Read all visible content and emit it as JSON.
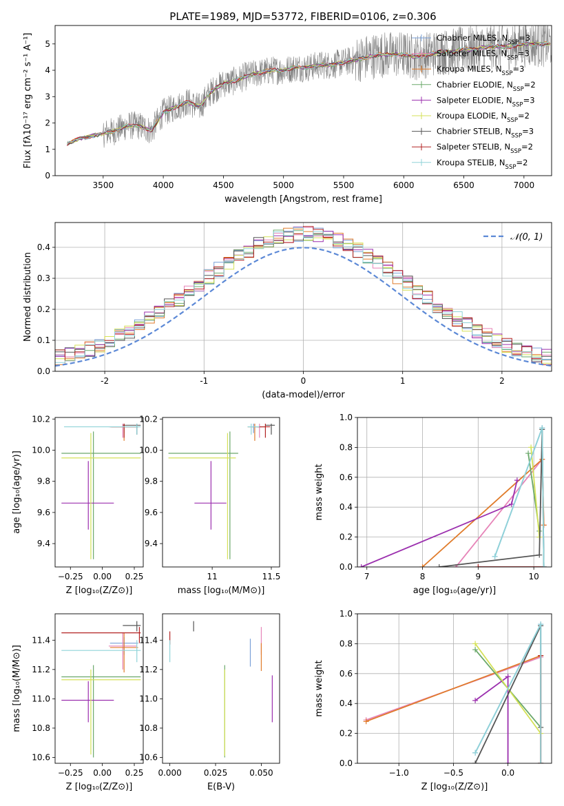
{
  "title": "PLATE=1989, MJD=53772, FIBERID=0106, z=0.306",
  "series_colors": {
    "Chabrier MILES": "#7aa0d8",
    "Salpeter MILES": "#e684b8",
    "Kroupa MILES": "#e07b2a",
    "Chabrier ELODIE": "#6aa86a",
    "Salpeter ELODIE": "#9b2fae",
    "Kroupa ELODIE": "#d4e157",
    "Chabrier STELIB": "#555555",
    "Salpeter STELIB": "#b22222",
    "Kroupa STELIB": "#8fd3d8"
  },
  "chart_data": [
    {
      "id": "spectrum",
      "type": "line",
      "xlabel": "wavelength [Angstrom, rest frame]",
      "ylabel": "Flux [fλ10⁻¹⁷ erg cm⁻² s⁻¹ A⁻¹]",
      "xlim": [
        3100,
        7230
      ],
      "ylim": [
        0,
        5.7
      ],
      "xticks": [
        3500,
        4000,
        4500,
        5000,
        5500,
        6000,
        6500,
        7000
      ],
      "yticks": [
        0,
        1,
        2,
        3,
        4,
        5
      ],
      "legend": [
        {
          "label": "Chabrier MILES, N",
          "sub": "SSP",
          "suffix": "=3",
          "series": "Chabrier MILES"
        },
        {
          "label": "Salpeter MILES, N",
          "sub": "SSP",
          "suffix": "=3",
          "series": "Salpeter MILES"
        },
        {
          "label": "Kroupa MILES, N",
          "sub": "SSP",
          "suffix": "=3",
          "series": "Kroupa MILES"
        },
        {
          "label": "Chabrier ELODIE, N",
          "sub": "SSP",
          "suffix": "=2",
          "series": "Chabrier ELODIE"
        },
        {
          "label": "Salpeter ELODIE, N",
          "sub": "SSP",
          "suffix": "=3",
          "series": "Salpeter ELODIE"
        },
        {
          "label": "Kroupa ELODIE, N",
          "sub": "SSP",
          "suffix": "=2",
          "series": "Kroupa ELODIE"
        },
        {
          "label": "Chabrier STELIB, N",
          "sub": "SSP",
          "suffix": "=3",
          "series": "Chabrier STELIB"
        },
        {
          "label": "Salpeter STELIB, N",
          "sub": "SSP",
          "suffix": "=2",
          "series": "Salpeter STELIB"
        },
        {
          "label": "Kroupa STELIB, N",
          "sub": "SSP",
          "suffix": "=2",
          "series": "Kroupa STELIB"
        }
      ],
      "model_curve": {
        "x": [
          3200,
          3300,
          3400,
          3500,
          3600,
          3700,
          3800,
          3900,
          4000,
          4100,
          4200,
          4300,
          4400,
          4500,
          4600,
          4700,
          4800,
          4900,
          5000,
          5100,
          5200,
          5300,
          5400,
          5500,
          5600,
          5700,
          5800,
          5900,
          6000,
          6100,
          6200,
          6300,
          6400,
          6500,
          6600,
          6700,
          6800,
          6900,
          7000,
          7100,
          7230
        ],
        "y": [
          1.2,
          1.4,
          1.5,
          1.6,
          1.7,
          1.9,
          1.9,
          1.7,
          2.4,
          2.6,
          2.8,
          2.6,
          3.2,
          3.5,
          3.6,
          3.8,
          3.9,
          4.0,
          4.0,
          4.1,
          4.1,
          4.2,
          4.2,
          4.3,
          4.4,
          4.5,
          4.6,
          4.6,
          4.6,
          4.5,
          4.6,
          4.7,
          4.7,
          4.8,
          4.8,
          4.9,
          4.9,
          4.9,
          5.0,
          5.0,
          5.0
        ]
      },
      "data_range": [
        3200,
        7230
      ]
    },
    {
      "id": "residuals",
      "type": "histogram",
      "xlabel": "(data-model)/error",
      "ylabel": "Normed distribution",
      "xlim": [
        -2.5,
        2.5
      ],
      "ylim": [
        0,
        0.48
      ],
      "xticks": [
        -2,
        -1,
        0,
        1,
        2
      ],
      "yticks": [
        0.0,
        0.1,
        0.2,
        0.3,
        0.4
      ],
      "legend": [
        {
          "label": "𝒩(0, 1)",
          "style": "dashed",
          "color": "#5b88d6"
        }
      ],
      "bin_width": 0.1,
      "gaussian": {
        "mu": 0,
        "sigma": 1
      }
    },
    {
      "id": "age_vs_Z",
      "type": "errorbar",
      "xlabel": "Z [log₁₀(Z/Z⊙)]",
      "ylabel": "age  [log₁₀(age/yr)]",
      "xlim": [
        -0.37,
        0.32
      ],
      "ylim": [
        9.25,
        10.21
      ],
      "xticks": [
        -0.25,
        0.0,
        0.25
      ],
      "xticklabels": [
        "−0.25",
        "0.00",
        "0.25"
      ],
      "yticks": [
        9.4,
        9.6,
        9.8,
        10.0,
        10.2
      ],
      "points": [
        {
          "series": "Chabrier MILES",
          "x": 0.17,
          "y": 10.15,
          "xlo": 0.06,
          "xhi": 0.28,
          "ylo": 10.11,
          "yhi": 10.17
        },
        {
          "series": "Salpeter MILES",
          "x": 0.16,
          "y": 10.15,
          "xlo": 0.05,
          "xhi": 0.27,
          "ylo": 10.08,
          "yhi": 10.17
        },
        {
          "series": "Kroupa MILES",
          "x": 0.17,
          "y": 10.15,
          "xlo": 0.06,
          "xhi": 0.28,
          "ylo": 10.06,
          "yhi": 10.17
        },
        {
          "series": "Chabrier ELODIE",
          "x": -0.07,
          "y": 9.98,
          "xlo": -0.32,
          "xhi": 0.3,
          "ylo": 9.3,
          "yhi": 10.12
        },
        {
          "series": "Salpeter ELODIE",
          "x": -0.11,
          "y": 9.66,
          "xlo": -0.32,
          "xhi": 0.09,
          "ylo": 9.49,
          "yhi": 9.93
        },
        {
          "series": "Kroupa ELODIE",
          "x": -0.09,
          "y": 9.95,
          "xlo": -0.32,
          "xhi": 0.3,
          "ylo": 9.3,
          "yhi": 10.11
        },
        {
          "series": "Chabrier STELIB",
          "x": 0.27,
          "y": 10.16,
          "xlo": 0.16,
          "xhi": 0.3,
          "ylo": 10.1,
          "yhi": 10.17
        },
        {
          "series": "Salpeter STELIB",
          "x": 0.17,
          "y": 10.15,
          "xlo": 0.07,
          "xhi": 0.28,
          "ylo": 10.08,
          "yhi": 10.17
        },
        {
          "series": "Kroupa STELIB",
          "x": 0.27,
          "y": 10.15,
          "xlo": -0.3,
          "xhi": 0.3,
          "ylo": 10.1,
          "yhi": 10.17
        }
      ]
    },
    {
      "id": "age_vs_mass",
      "type": "errorbar",
      "xlabel": "mass [log₁₀(M/M⊙)]",
      "ylabel": "",
      "xlim": [
        10.58,
        11.57
      ],
      "ylim": [
        9.25,
        10.21
      ],
      "xticks": [
        11.0,
        11.5
      ],
      "yticks": [
        9.4,
        9.6,
        9.8,
        10.0,
        10.2
      ],
      "points": [
        {
          "series": "Chabrier MILES",
          "x": 11.35,
          "y": 10.15,
          "xlo": 11.3,
          "xhi": 11.42,
          "ylo": 10.11,
          "yhi": 10.17
        },
        {
          "series": "Salpeter MILES",
          "x": 11.4,
          "y": 10.15,
          "xlo": 11.32,
          "xhi": 11.45,
          "ylo": 10.08,
          "yhi": 10.17
        },
        {
          "series": "Kroupa MILES",
          "x": 11.36,
          "y": 10.15,
          "xlo": 11.3,
          "xhi": 11.45,
          "ylo": 10.06,
          "yhi": 10.17
        },
        {
          "series": "Chabrier ELODIE",
          "x": 11.15,
          "y": 9.98,
          "xlo": 10.63,
          "xhi": 11.22,
          "ylo": 9.3,
          "yhi": 10.12
        },
        {
          "series": "Salpeter ELODIE",
          "x": 10.99,
          "y": 9.66,
          "xlo": 10.85,
          "xhi": 11.12,
          "ylo": 9.49,
          "yhi": 9.93
        },
        {
          "series": "Kroupa ELODIE",
          "x": 11.13,
          "y": 9.95,
          "xlo": 10.63,
          "xhi": 11.2,
          "ylo": 9.3,
          "yhi": 10.11
        },
        {
          "series": "Chabrier STELIB",
          "x": 11.5,
          "y": 10.16,
          "xlo": 11.45,
          "xhi": 11.53,
          "ylo": 10.1,
          "yhi": 10.17
        },
        {
          "series": "Salpeter STELIB",
          "x": 11.45,
          "y": 10.15,
          "xlo": 11.38,
          "xhi": 11.49,
          "ylo": 10.08,
          "yhi": 10.17
        },
        {
          "series": "Kroupa STELIB",
          "x": 11.33,
          "y": 10.15,
          "xlo": 11.3,
          "xhi": 11.4,
          "ylo": 10.1,
          "yhi": 10.17
        }
      ]
    },
    {
      "id": "weight_vs_age",
      "type": "line",
      "xlabel": "age  [log₁₀(age/yr)]",
      "ylabel": "mass weight",
      "xlim": [
        6.83,
        10.32
      ],
      "ylim": [
        0,
        1
      ],
      "xticks": [
        7,
        8,
        9,
        10
      ],
      "yticks": [
        0.0,
        0.2,
        0.4,
        0.6,
        0.8,
        1.0
      ],
      "grid": true,
      "series": [
        {
          "name": "Chabrier MILES",
          "x": [
            9.3,
            10.15,
            10.18
          ],
          "y": [
            0.07,
            0.93,
            0.0
          ]
        },
        {
          "name": "Salpeter MILES",
          "x": [
            8.6,
            10.15,
            10.18
          ],
          "y": [
            0.0,
            0.72,
            0.28
          ]
        },
        {
          "name": "Kroupa MILES",
          "x": [
            8.0,
            10.15,
            10.18
          ],
          "y": [
            0.0,
            0.72,
            0.28
          ]
        },
        {
          "name": "Chabrier ELODIE",
          "x": [
            9.9,
            10.1
          ],
          "y": [
            0.76,
            0.24
          ]
        },
        {
          "name": "Salpeter ELODIE",
          "x": [
            6.9,
            9.6,
            9.7
          ],
          "y": [
            0.0,
            0.42,
            0.58
          ]
        },
        {
          "name": "Kroupa ELODIE",
          "x": [
            9.95,
            10.1
          ],
          "y": [
            0.8,
            0.2
          ]
        },
        {
          "name": "Chabrier STELIB",
          "x": [
            8.3,
            10.1,
            10.15,
            10.18
          ],
          "y": [
            0.0,
            0.08,
            0.92,
            0.0
          ]
        },
        {
          "name": "Salpeter STELIB",
          "x": [
            9.0,
            10.18
          ],
          "y": [
            0.0,
            0.0
          ]
        },
        {
          "name": "Kroupa STELIB",
          "x": [
            9.3,
            10.15,
            10.18
          ],
          "y": [
            0.07,
            0.93,
            0.0
          ]
        }
      ]
    },
    {
      "id": "mass_vs_Z",
      "type": "errorbar",
      "xlabel": "Z [log₁₀(Z/Z⊙)]",
      "ylabel": "mass [log₁₀(M/M⊙)]",
      "xlim": [
        -0.37,
        0.32
      ],
      "ylim": [
        10.56,
        11.58
      ],
      "xticks": [
        -0.25,
        0.0,
        0.25
      ],
      "xticklabels": [
        "−0.25",
        "0.00",
        "0.25"
      ],
      "yticks": [
        10.6,
        10.8,
        11.0,
        11.2,
        11.4
      ],
      "points": [
        {
          "series": "Chabrier MILES",
          "x": 0.17,
          "y": 11.38,
          "xlo": 0.06,
          "xhi": 0.28,
          "ylo": 11.3,
          "yhi": 11.42
        },
        {
          "series": "Salpeter MILES",
          "x": 0.16,
          "y": 11.36,
          "xlo": 0.05,
          "xhi": 0.27,
          "ylo": 11.2,
          "yhi": 11.45
        },
        {
          "series": "Kroupa MILES",
          "x": 0.17,
          "y": 11.35,
          "xlo": 0.06,
          "xhi": 0.28,
          "ylo": 11.18,
          "yhi": 11.45
        },
        {
          "series": "Chabrier ELODIE",
          "x": -0.07,
          "y": 11.15,
          "xlo": -0.32,
          "xhi": 0.3,
          "ylo": 10.6,
          "yhi": 11.23
        },
        {
          "series": "Salpeter ELODIE",
          "x": -0.11,
          "y": 10.99,
          "xlo": -0.32,
          "xhi": 0.09,
          "ylo": 10.84,
          "yhi": 11.12
        },
        {
          "series": "Kroupa ELODIE",
          "x": -0.09,
          "y": 11.13,
          "xlo": -0.32,
          "xhi": 0.3,
          "ylo": 10.62,
          "yhi": 11.2
        },
        {
          "series": "Chabrier STELIB",
          "x": 0.27,
          "y": 11.5,
          "xlo": 0.16,
          "xhi": 0.3,
          "ylo": 11.46,
          "yhi": 11.53
        },
        {
          "series": "Salpeter STELIB",
          "x": 0.29,
          "y": 11.45,
          "xlo": -0.32,
          "xhi": 0.3,
          "ylo": 11.38,
          "yhi": 11.49
        },
        {
          "series": "Kroupa STELIB",
          "x": 0.27,
          "y": 11.33,
          "xlo": -0.32,
          "xhi": 0.3,
          "ylo": 11.25,
          "yhi": 11.4
        }
      ]
    },
    {
      "id": "mass_vs_ebv",
      "type": "errorbar",
      "xlabel": "E(B-V)",
      "ylabel": "",
      "xlim": [
        -0.004,
        0.06
      ],
      "ylim": [
        10.56,
        11.58
      ],
      "xticks": [
        0.0,
        0.025,
        0.05
      ],
      "xticklabels": [
        "0.000",
        "0.025",
        "0.050"
      ],
      "yticks": [
        10.6,
        10.8,
        11.0,
        11.2,
        11.4
      ],
      "points": [
        {
          "series": "Chabrier MILES",
          "x": 0.044,
          "ylo": 11.22,
          "yhi": 11.41
        },
        {
          "series": "Salpeter MILES",
          "x": 0.05,
          "ylo": 11.3,
          "yhi": 11.49
        },
        {
          "series": "Kroupa MILES",
          "x": 0.05,
          "ylo": 11.19,
          "yhi": 11.38
        },
        {
          "series": "Chabrier ELODIE",
          "x": 0.03,
          "ylo": 10.6,
          "yhi": 11.23
        },
        {
          "series": "Salpeter ELODIE",
          "x": 0.056,
          "ylo": 10.84,
          "yhi": 11.16
        },
        {
          "series": "Kroupa ELODIE",
          "x": 0.03,
          "ylo": 10.61,
          "yhi": 11.2
        },
        {
          "series": "Chabrier STELIB",
          "x": 0.013,
          "ylo": 11.46,
          "yhi": 11.53
        },
        {
          "series": "Salpeter STELIB",
          "x": 0.0,
          "ylo": 11.37,
          "yhi": 11.46
        },
        {
          "series": "Kroupa STELIB",
          "x": 0.0,
          "ylo": 11.25,
          "yhi": 11.4
        }
      ]
    },
    {
      "id": "weight_vs_Z",
      "type": "line",
      "xlabel": "Z [log₁₀(Z/Z⊙)]",
      "ylabel": "mass weight",
      "xlim": [
        -1.38,
        0.4
      ],
      "ylim": [
        0,
        1
      ],
      "xticks": [
        -1.0,
        -0.5,
        0.0
      ],
      "xticklabels": [
        "−1.0",
        "−0.5",
        "0.0"
      ],
      "yticks": [
        0.0,
        0.2,
        0.4,
        0.6,
        0.8,
        1.0
      ],
      "grid": true,
      "series": [
        {
          "name": "Chabrier MILES",
          "x": [
            -0.3,
            0.3,
            0.3
          ],
          "y": [
            0.07,
            0.93,
            0.0
          ]
        },
        {
          "name": "Salpeter MILES",
          "x": [
            -1.3,
            0.3,
            0.3
          ],
          "y": [
            0.29,
            0.71,
            0.0
          ]
        },
        {
          "name": "Kroupa MILES",
          "x": [
            -1.3,
            0.3,
            0.3
          ],
          "y": [
            0.28,
            0.72,
            0.0
          ]
        },
        {
          "name": "Chabrier ELODIE",
          "x": [
            -0.3,
            0.3
          ],
          "y": [
            0.76,
            0.24
          ]
        },
        {
          "name": "Salpeter ELODIE",
          "x": [
            -0.3,
            0.0,
            0.0
          ],
          "y": [
            0.42,
            0.58,
            0.0
          ]
        },
        {
          "name": "Kroupa ELODIE",
          "x": [
            -0.3,
            0.3
          ],
          "y": [
            0.8,
            0.2
          ]
        },
        {
          "name": "Chabrier STELIB",
          "x": [
            -0.3,
            0.3,
            0.3
          ],
          "y": [
            0.0,
            0.92,
            0.24
          ]
        },
        {
          "name": "Salpeter STELIB",
          "x": [
            0.3,
            0.3
          ],
          "y": [
            0.0,
            0.72
          ]
        },
        {
          "name": "Kroupa STELIB",
          "x": [
            -0.3,
            0.3,
            0.3
          ],
          "y": [
            0.07,
            0.93,
            0.0
          ]
        }
      ]
    }
  ]
}
